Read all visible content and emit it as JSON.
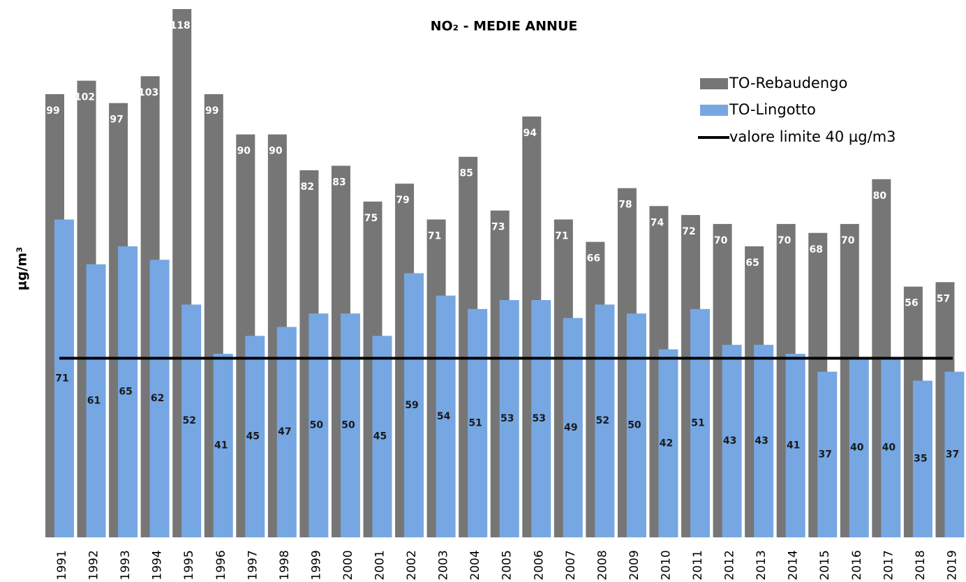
{
  "chart_data": {
    "type": "bar",
    "title": "NO₂ - MEDIE ANNUE",
    "y_label": "µg/m³",
    "categories": [
      "1991",
      "1992",
      "1993",
      "1994",
      "1995",
      "1996",
      "1997",
      "1998",
      "1999",
      "2000",
      "2001",
      "2002",
      "2003",
      "2004",
      "2005",
      "2006",
      "2007",
      "2008",
      "2009",
      "2010",
      "2011",
      "2012",
      "2013",
      "2014",
      "2015",
      "2016",
      "2017",
      "2018",
      "2019"
    ],
    "series": [
      {
        "name": "TO-Rebaudengo",
        "color": "#767676",
        "values": [
          99,
          102,
          97,
          103,
          118,
          99,
          90,
          90,
          82,
          83,
          75,
          79,
          71,
          85,
          73,
          94,
          71,
          66,
          78,
          74,
          72,
          70,
          65,
          70,
          68,
          70,
          80,
          56,
          57
        ]
      },
      {
        "name": "TO-Lingotto",
        "color": "#76a7e3",
        "values": [
          71,
          61,
          65,
          62,
          52,
          41,
          45,
          47,
          50,
          50,
          45,
          59,
          54,
          51,
          53,
          53,
          49,
          52,
          50,
          42,
          51,
          43,
          43,
          41,
          37,
          40,
          40,
          35,
          37
        ]
      }
    ],
    "limit": {
      "name": "valore limite 40 µg/m3",
      "value": 40,
      "color": "#000000"
    },
    "ylim": [
      0,
      118
    ],
    "legend": "top-right"
  }
}
